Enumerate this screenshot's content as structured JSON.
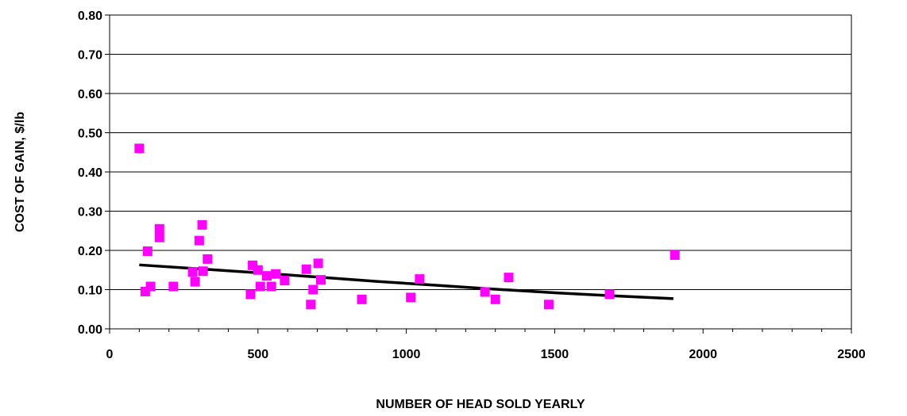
{
  "chart_data": {
    "type": "scatter",
    "xlabel": "NUMBER OF HEAD SOLD YEARLY",
    "ylabel": "COST OF GAIN,  $/lb",
    "xlim": [
      0,
      2500
    ],
    "ylim": [
      0,
      0.8
    ],
    "x_ticks": [
      0,
      500,
      1000,
      1500,
      2000,
      2500
    ],
    "x_tick_labels": [
      "0",
      "500",
      "1000",
      "1500",
      "2000",
      "2500"
    ],
    "y_ticks": [
      0,
      0.1,
      0.2,
      0.3,
      0.4,
      0.5,
      0.6,
      0.7,
      0.8
    ],
    "y_tick_labels": [
      "0.00",
      "0.10",
      "0.20",
      "0.30",
      "0.40",
      "0.50",
      "0.60",
      "0.70",
      "0.80"
    ],
    "grid": "horizontal",
    "legend": "none",
    "colors": {
      "points": "#ff00ff",
      "trend": "#000000",
      "grid": "#000000"
    },
    "series": [
      {
        "values": [
          [
            100,
            0.46
          ],
          [
            120,
            0.095
          ],
          [
            128,
            0.198
          ],
          [
            138,
            0.108
          ],
          [
            168,
            0.255
          ],
          [
            168,
            0.233
          ],
          [
            215,
            0.108
          ],
          [
            280,
            0.145
          ],
          [
            288,
            0.12
          ],
          [
            302,
            0.225
          ],
          [
            312,
            0.265
          ],
          [
            315,
            0.147
          ],
          [
            330,
            0.178
          ],
          [
            475,
            0.088
          ],
          [
            482,
            0.162
          ],
          [
            500,
            0.15
          ],
          [
            508,
            0.108
          ],
          [
            530,
            0.135
          ],
          [
            545,
            0.108
          ],
          [
            560,
            0.14
          ],
          [
            590,
            0.123
          ],
          [
            663,
            0.152
          ],
          [
            678,
            0.062
          ],
          [
            686,
            0.1
          ],
          [
            703,
            0.167
          ],
          [
            712,
            0.125
          ],
          [
            850,
            0.075
          ],
          [
            1015,
            0.08
          ],
          [
            1045,
            0.127
          ],
          [
            1265,
            0.094
          ],
          [
            1300,
            0.075
          ],
          [
            1345,
            0.131
          ],
          [
            1480,
            0.062
          ],
          [
            1685,
            0.088
          ],
          [
            1905,
            0.188
          ]
        ]
      }
    ],
    "trendline": {
      "x": [
        100,
        300,
        500,
        700,
        900,
        1100,
        1300,
        1500,
        1700,
        1900
      ],
      "y": [
        0.163,
        0.153,
        0.143,
        0.132,
        0.121,
        0.111,
        0.101,
        0.092,
        0.084,
        0.077
      ]
    }
  }
}
